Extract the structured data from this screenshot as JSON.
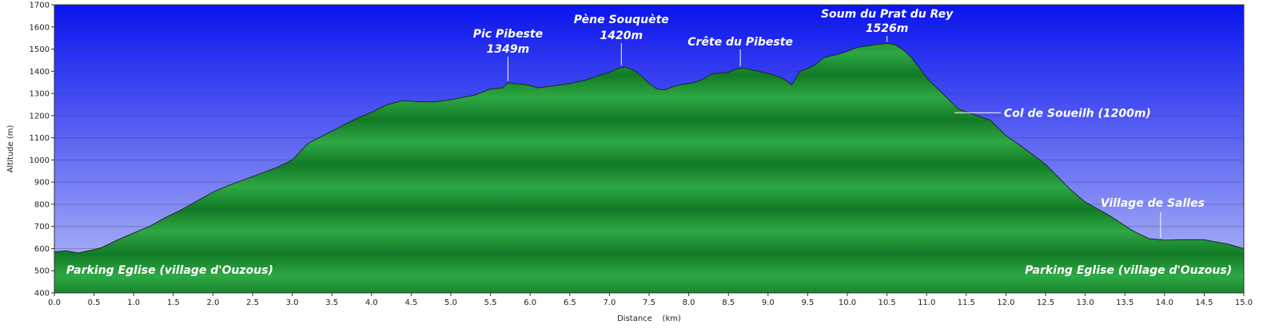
{
  "chart_data": {
    "type": "area",
    "xlabel": "Distance    (km)",
    "ylabel": "Altitude (m)",
    "xlim": [
      0,
      15
    ],
    "ylim": [
      400,
      1700
    ],
    "x_ticks": [
      0,
      0.5,
      1,
      1.5,
      2,
      2.5,
      3,
      3.5,
      4,
      4.5,
      5,
      5.5,
      6,
      6.5,
      7,
      7.5,
      8,
      8.5,
      9,
      9.5,
      10,
      10.5,
      11,
      11.5,
      12,
      12.5,
      13,
      13.5,
      14,
      14.5,
      15
    ],
    "y_ticks": [
      400,
      500,
      600,
      700,
      800,
      900,
      1000,
      1100,
      1200,
      1300,
      1400,
      1500,
      1600,
      1700
    ],
    "grid": true,
    "colors": {
      "sky_top": "#0a14ef",
      "sky_bottom": "#b9c0f6",
      "terrain_light": "#2ea844",
      "terrain_dark": "#127a26"
    },
    "series": [
      {
        "x": [
          0,
          0.15,
          0.3,
          0.5,
          0.6,
          0.8,
          1.0,
          1.2,
          1.4,
          1.6,
          1.8,
          2.0,
          2.2,
          2.5,
          2.8,
          3.0,
          3.2,
          3.5,
          3.8,
          4.0,
          4.2,
          4.4,
          4.6,
          4.8,
          5.0,
          5.3,
          5.5,
          5.65,
          5.72,
          5.8,
          5.95,
          6.1,
          6.3,
          6.5,
          6.7,
          6.9,
          7.0,
          7.1,
          7.2,
          7.3,
          7.4,
          7.5,
          7.6,
          7.7,
          7.8,
          7.9,
          8.0,
          8.1,
          8.2,
          8.3,
          8.4,
          8.5,
          8.6,
          8.7,
          8.8,
          8.9,
          9.0,
          9.1,
          9.2,
          9.3,
          9.4,
          9.5,
          9.6,
          9.7,
          9.8,
          9.9,
          10.0,
          10.1,
          10.2,
          10.3,
          10.4,
          10.5,
          10.6,
          10.7,
          10.8,
          10.9,
          11.0,
          11.2,
          11.4,
          11.6,
          11.8,
          12.0,
          12.2,
          12.5,
          12.8,
          13.0,
          13.3,
          13.6,
          13.8,
          14.0,
          14.2,
          14.5,
          14.8,
          15.0
        ],
        "y": [
          585,
          590,
          580,
          595,
          605,
          640,
          670,
          700,
          740,
          775,
          815,
          855,
          885,
          925,
          965,
          1000,
          1075,
          1130,
          1185,
          1215,
          1250,
          1268,
          1262,
          1262,
          1272,
          1292,
          1320,
          1325,
          1349,
          1345,
          1340,
          1325,
          1335,
          1345,
          1360,
          1385,
          1395,
          1412,
          1420,
          1405,
          1380,
          1345,
          1320,
          1316,
          1330,
          1340,
          1345,
          1352,
          1368,
          1390,
          1392,
          1395,
          1410,
          1415,
          1405,
          1398,
          1390,
          1380,
          1365,
          1338,
          1400,
          1412,
          1430,
          1460,
          1470,
          1478,
          1490,
          1505,
          1512,
          1517,
          1522,
          1526,
          1520,
          1498,
          1465,
          1420,
          1370,
          1300,
          1230,
          1205,
          1180,
          1110,
          1060,
          980,
          870,
          810,
          750,
          680,
          645,
          638,
          640,
          640,
          620,
          600
        ]
      }
    ],
    "annotations": [
      {
        "label": "Pic Pibeste",
        "sublabel": "1349m",
        "x": 5.72,
        "y": 1349
      },
      {
        "label": "Pène Souquète",
        "sublabel": "1420m",
        "x": 7.15,
        "y": 1420
      },
      {
        "label": "Crête du Pibeste",
        "sublabel": "",
        "x": 8.65,
        "y": 1415
      },
      {
        "label": "Soum du Prat du Rey",
        "sublabel": "1526m",
        "x": 10.5,
        "y": 1526
      },
      {
        "label": "Col de Soueilh (1200m)",
        "sublabel": "",
        "x": 11.35,
        "y": 1220
      },
      {
        "label": "Village de Salles",
        "sublabel": "",
        "x": 13.95,
        "y": 638
      },
      {
        "label": "Parking Eglise (village d'Ouzous)",
        "sublabel": "",
        "x": 0.15,
        "y": 485
      },
      {
        "label": "Parking Eglise (village d'Ouzous)",
        "sublabel": "",
        "x": 14.85,
        "y": 485
      }
    ]
  }
}
